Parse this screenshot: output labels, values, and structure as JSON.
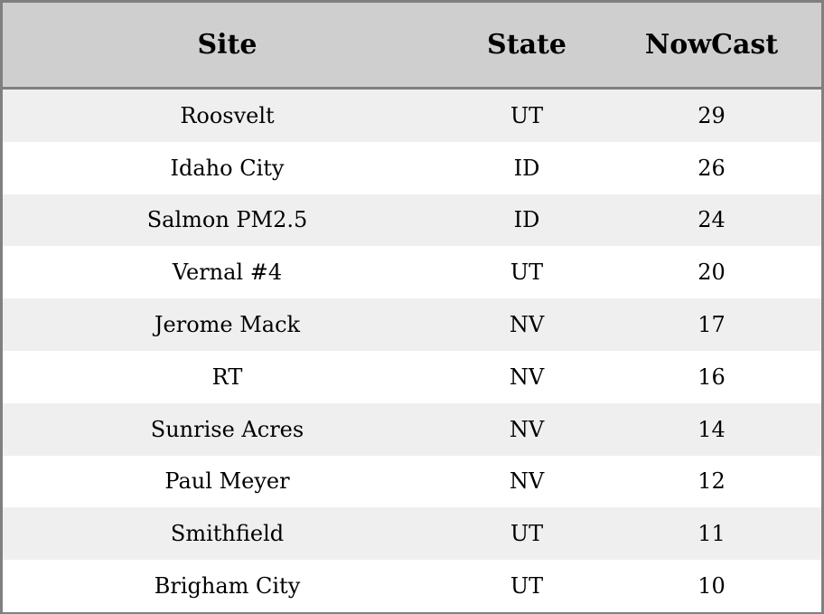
{
  "table": {
    "headers": [
      "Site",
      "State",
      "NowCast"
    ],
    "rows": [
      [
        "Roosvelt",
        "UT",
        "29"
      ],
      [
        "Idaho City",
        "ID",
        "26"
      ],
      [
        "Salmon PM2.5",
        "ID",
        "24"
      ],
      [
        "Vernal #4",
        "UT",
        "20"
      ],
      [
        "Jerome Mack",
        "NV",
        "17"
      ],
      [
        "RT",
        "NV",
        "16"
      ],
      [
        "Sunrise Acres",
        "NV",
        "14"
      ],
      [
        "Paul Meyer",
        "NV",
        "12"
      ],
      [
        "Smithfield",
        "UT",
        "11"
      ],
      [
        "Brigham City",
        "UT",
        "10"
      ]
    ]
  },
  "colors": {
    "header_bg": "#cfcfcf",
    "stripe_bg": "#efefef",
    "border": "#808080"
  }
}
